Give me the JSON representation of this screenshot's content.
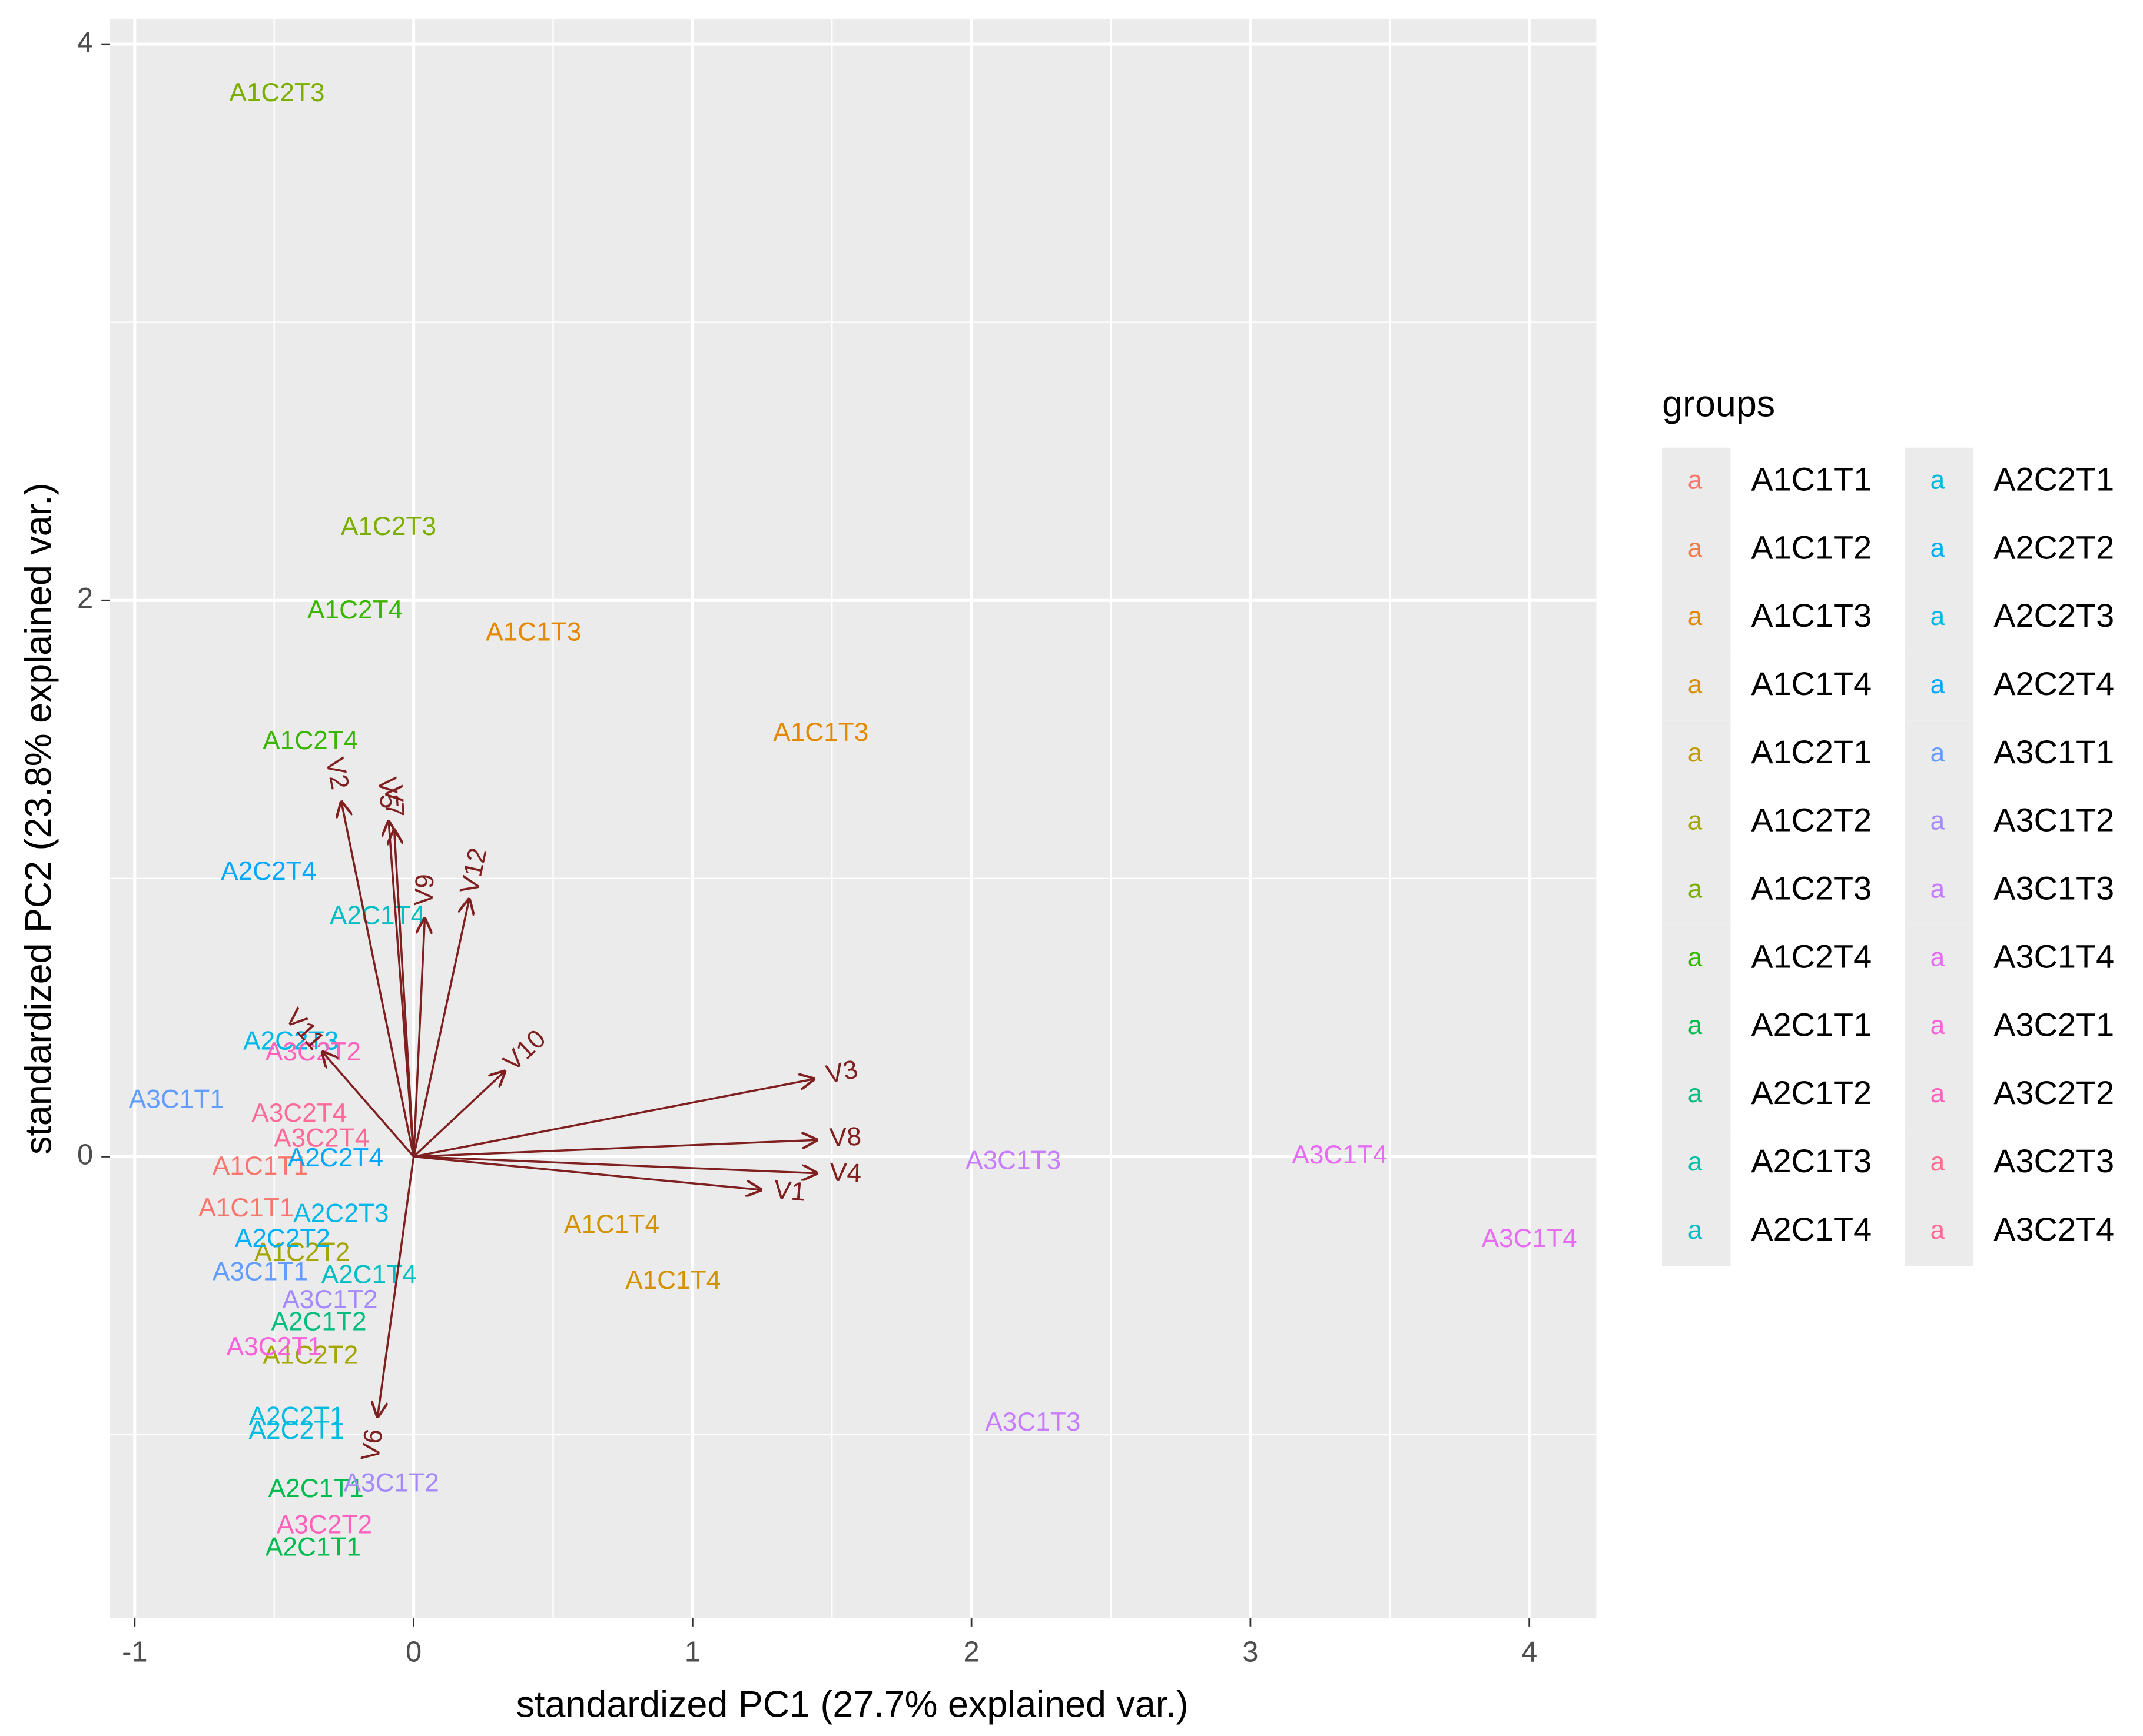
{
  "chart_data": {
    "type": "biplot",
    "xlabel": "standardized PC1 (27.7% explained var.)",
    "ylabel": "standardized PC2 (23.8% explained var.)",
    "xlim": [
      -1.09,
      4.24
    ],
    "ylim": [
      -1.66,
      4.09
    ],
    "xticks": [
      -1,
      0,
      1,
      2,
      3,
      4
    ],
    "yticks": [
      0,
      2,
      4
    ],
    "xminor": [
      -0.5,
      0.5,
      1.5,
      2.5,
      3.5
    ],
    "yminor": [
      -1,
      1,
      3
    ],
    "grid": true,
    "legend_title": "groups",
    "legend_key_label": "a",
    "legend_position": "right",
    "arrow_color": "#7F1F1F",
    "series": [
      {
        "name": "A1C1T1",
        "color": "#F8766D",
        "x": [
          -0.55,
          -0.6
        ],
        "y": [
          -0.04,
          -0.19
        ]
      },
      {
        "name": "A1C1T2",
        "color": "#F07E4C",
        "x": [],
        "y": []
      },
      {
        "name": "A1C1T3",
        "color": "#E38900",
        "x": [
          0.43,
          1.46
        ],
        "y": [
          1.88,
          1.52
        ]
      },
      {
        "name": "A1C1T4",
        "color": "#D39200",
        "x": [
          0.71,
          0.93
        ],
        "y": [
          -0.25,
          -0.45
        ]
      },
      {
        "name": "A1C2T1",
        "color": "#C09B00",
        "x": [],
        "y": []
      },
      {
        "name": "A1C2T2",
        "color": "#A3A500",
        "x": [
          -0.4,
          -0.37
        ],
        "y": [
          -0.35,
          -0.72
        ]
      },
      {
        "name": "A1C2T3",
        "color": "#7CAE00",
        "x": [
          -0.49,
          -0.09
        ],
        "y": [
          3.82,
          2.26
        ]
      },
      {
        "name": "A1C2T4",
        "color": "#39B600",
        "x": [
          -0.21,
          -0.37
        ],
        "y": [
          1.96,
          1.49
        ]
      },
      {
        "name": "A2C1T1",
        "color": "#00BB4E",
        "x": [
          -0.35,
          -0.36
        ],
        "y": [
          -1.2,
          -1.41
        ]
      },
      {
        "name": "A2C1T2",
        "color": "#00BF7D",
        "x": [
          -0.34
        ],
        "y": [
          -0.6
        ]
      },
      {
        "name": "A2C1T3",
        "color": "#00C1A3",
        "x": [],
        "y": []
      },
      {
        "name": "A2C1T4",
        "color": "#00BFC4",
        "x": [
          -0.13,
          -0.16
        ],
        "y": [
          0.86,
          -0.43
        ]
      },
      {
        "name": "A2C2T1",
        "color": "#00BAE0",
        "x": [
          -0.42,
          -0.42
        ],
        "y": [
          -0.94,
          -0.99
        ]
      },
      {
        "name": "A2C2T2",
        "color": "#00B0F6",
        "x": [
          -0.47
        ],
        "y": [
          -0.3
        ]
      },
      {
        "name": "A2C2T3",
        "color": "#00B8E7",
        "x": [
          -0.44,
          -0.26
        ],
        "y": [
          0.41,
          -0.21
        ]
      },
      {
        "name": "A2C2T4",
        "color": "#00A9FF",
        "x": [
          -0.52,
          -0.28
        ],
        "y": [
          1.02,
          -0.01
        ]
      },
      {
        "name": "A3C1T1",
        "color": "#619CFF",
        "x": [
          -0.85,
          -0.55
        ],
        "y": [
          0.2,
          -0.42
        ]
      },
      {
        "name": "A3C1T2",
        "color": "#A58AFF",
        "x": [
          -0.3,
          -0.08
        ],
        "y": [
          -0.52,
          -1.18
        ]
      },
      {
        "name": "A3C1T3",
        "color": "#C77CFF",
        "x": [
          2.15,
          2.22
        ],
        "y": [
          -0.02,
          -0.96
        ]
      },
      {
        "name": "A3C1T4",
        "color": "#E76BF3",
        "x": [
          3.32,
          4.0
        ],
        "y": [
          0,
          -0.3
        ]
      },
      {
        "name": "A3C2T1",
        "color": "#FA62DB",
        "x": [
          -0.5
        ],
        "y": [
          -0.69
        ]
      },
      {
        "name": "A3C2T2",
        "color": "#FF62BC",
        "x": [
          -0.36,
          -0.32
        ],
        "y": [
          0.37,
          -1.33
        ]
      },
      {
        "name": "A3C2T3",
        "color": "#FF6C91",
        "x": [],
        "y": []
      },
      {
        "name": "A3C2T4",
        "color": "#FF6A98",
        "x": [
          -0.41,
          -0.33
        ],
        "y": [
          0.15,
          0.06
        ]
      }
    ],
    "arrows": [
      {
        "name": "V1",
        "x": 1.25,
        "y": -0.12
      },
      {
        "name": "V2",
        "x": -0.26,
        "y": 1.28
      },
      {
        "name": "V3",
        "x": 1.44,
        "y": 0.28
      },
      {
        "name": "V4",
        "x": 1.45,
        "y": -0.06
      },
      {
        "name": "V5",
        "x": -0.09,
        "y": 1.21
      },
      {
        "name": "V6",
        "x": -0.13,
        "y": -0.94
      },
      {
        "name": "V7",
        "x": -0.07,
        "y": 1.18
      },
      {
        "name": "V8",
        "x": 1.45,
        "y": 0.06
      },
      {
        "name": "V9",
        "x": 0.04,
        "y": 0.86
      },
      {
        "name": "V10",
        "x": 0.33,
        "y": 0.31
      },
      {
        "name": "V11",
        "x": -0.33,
        "y": 0.38
      },
      {
        "name": "V12",
        "x": 0.2,
        "y": 0.93
      }
    ]
  }
}
